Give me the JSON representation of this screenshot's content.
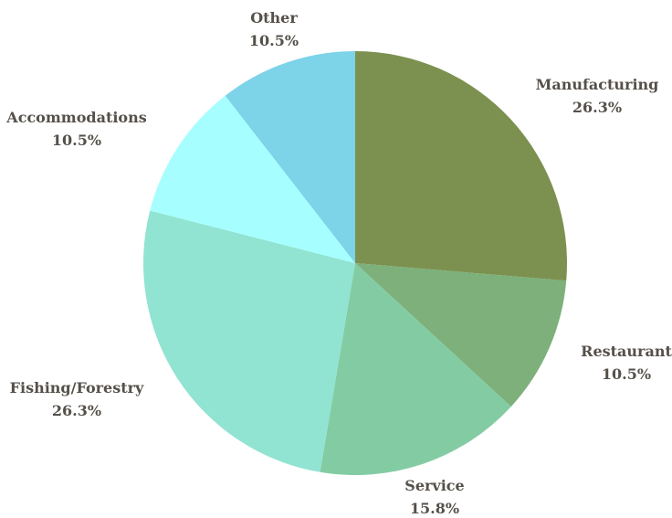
{
  "chart_data": {
    "type": "pie",
    "slices": [
      {
        "label": "Manufacturing",
        "pct_label": "26.3%",
        "value": 26.3,
        "color": "#7c9150"
      },
      {
        "label": "Restaurant",
        "pct_label": "10.5%",
        "value": 10.5,
        "color": "#7db07a"
      },
      {
        "label": "Service",
        "pct_label": "15.8%",
        "value": 15.8,
        "color": "#83cca3"
      },
      {
        "label": "Fishing/Forestry",
        "pct_label": "26.3%",
        "value": 26.3,
        "color": "#90e4d1"
      },
      {
        "label": "Accommodations",
        "pct_label": "10.5%",
        "value": 10.5,
        "color": "#a6feff"
      },
      {
        "label": "Other",
        "pct_label": "10.5%",
        "value": 10.5,
        "color": "#7dd3e8"
      }
    ],
    "start_angle": "top",
    "direction": "clockwise"
  }
}
